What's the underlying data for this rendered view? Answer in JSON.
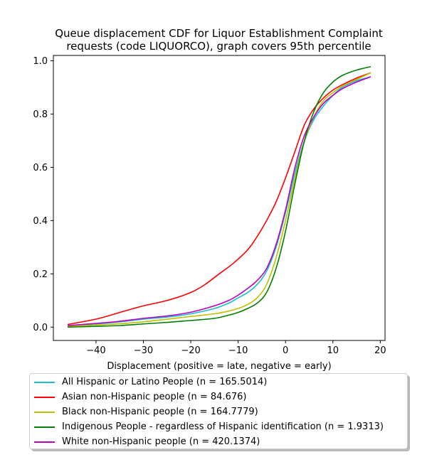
{
  "chart_data": {
    "type": "line",
    "title_lines": [
      "Queue displacement CDF for Liquor Establishment Complaint",
      "requests (code LIQUORCO), graph covers 95th percentile"
    ],
    "xlabel": "Displacement (positive = late, negative = early)",
    "ylabel": "",
    "xlim": [
      -49,
      21
    ],
    "ylim": [
      -0.05,
      1.02
    ],
    "xticks": [
      -40,
      -30,
      -20,
      -10,
      0,
      10,
      20
    ],
    "yticks": [
      0.0,
      0.2,
      0.4,
      0.6,
      0.8,
      1.0
    ],
    "xtick_labels": [
      "−40",
      "−30",
      "−20",
      "−10",
      "0",
      "10",
      "20"
    ],
    "ytick_labels": [
      "0.0",
      "0.2",
      "0.4",
      "0.6",
      "0.8",
      "1.0"
    ],
    "grid": false,
    "legend_position": "below",
    "series": [
      {
        "name": "All Hispanic or Latino People (n = 165.5014)",
        "color": "#17becf",
        "x": [
          -46,
          -40,
          -35,
          -30,
          -25,
          -20,
          -15,
          -12,
          -10,
          -8,
          -6,
          -4,
          -2,
          0,
          2,
          4,
          6,
          8,
          10,
          12,
          15,
          18
        ],
        "y": [
          0.005,
          0.012,
          0.02,
          0.03,
          0.038,
          0.05,
          0.07,
          0.09,
          0.11,
          0.13,
          0.16,
          0.21,
          0.3,
          0.43,
          0.58,
          0.7,
          0.78,
          0.83,
          0.87,
          0.9,
          0.925,
          0.94
        ]
      },
      {
        "name": "Asian non-Hispanic people (n = 84.676)",
        "color": "#ff0000",
        "x": [
          -46,
          -40,
          -35,
          -30,
          -25,
          -20,
          -17,
          -14,
          -11,
          -8,
          -6,
          -4,
          -2,
          0,
          2,
          4,
          6,
          8,
          10,
          12,
          15,
          18
        ],
        "y": [
          0.01,
          0.03,
          0.055,
          0.08,
          0.1,
          0.13,
          0.16,
          0.2,
          0.24,
          0.29,
          0.34,
          0.4,
          0.47,
          0.56,
          0.66,
          0.76,
          0.82,
          0.86,
          0.89,
          0.91,
          0.935,
          0.955
        ]
      },
      {
        "name": "Black non-Hispanic people (n = 164.7779)",
        "color": "#bfbf00",
        "x": [
          -46,
          -40,
          -35,
          -30,
          -25,
          -20,
          -15,
          -12,
          -10,
          -8,
          -6,
          -4,
          -2,
          0,
          2,
          4,
          6,
          8,
          10,
          12,
          15,
          18
        ],
        "y": [
          0.003,
          0.008,
          0.013,
          0.02,
          0.03,
          0.04,
          0.05,
          0.06,
          0.07,
          0.085,
          0.11,
          0.16,
          0.26,
          0.4,
          0.56,
          0.7,
          0.79,
          0.85,
          0.88,
          0.905,
          0.93,
          0.955
        ]
      },
      {
        "name": "Indigenous People - regardless of Hispanic identification (n = 1.9313)",
        "color": "#008000",
        "x": [
          -46,
          -40,
          -35,
          -30,
          -25,
          -20,
          -15,
          -12,
          -10,
          -8,
          -6,
          -4,
          -2,
          0,
          2,
          4,
          6,
          8,
          10,
          12,
          15,
          18
        ],
        "y": [
          0.0,
          0.003,
          0.006,
          0.012,
          0.018,
          0.025,
          0.033,
          0.045,
          0.055,
          0.07,
          0.09,
          0.13,
          0.22,
          0.36,
          0.54,
          0.7,
          0.81,
          0.88,
          0.92,
          0.945,
          0.965,
          0.978
        ]
      },
      {
        "name": "White non-Hispanic people (n = 420.1374)",
        "color": "#bf00bf",
        "x": [
          -46,
          -40,
          -35,
          -30,
          -25,
          -20,
          -15,
          -12,
          -10,
          -8,
          -6,
          -4,
          -2,
          0,
          2,
          4,
          6,
          8,
          10,
          12,
          15,
          18
        ],
        "y": [
          0.006,
          0.014,
          0.022,
          0.033,
          0.042,
          0.056,
          0.08,
          0.1,
          0.12,
          0.145,
          0.175,
          0.22,
          0.31,
          0.44,
          0.6,
          0.72,
          0.79,
          0.84,
          0.87,
          0.895,
          0.92,
          0.94
        ]
      }
    ]
  }
}
